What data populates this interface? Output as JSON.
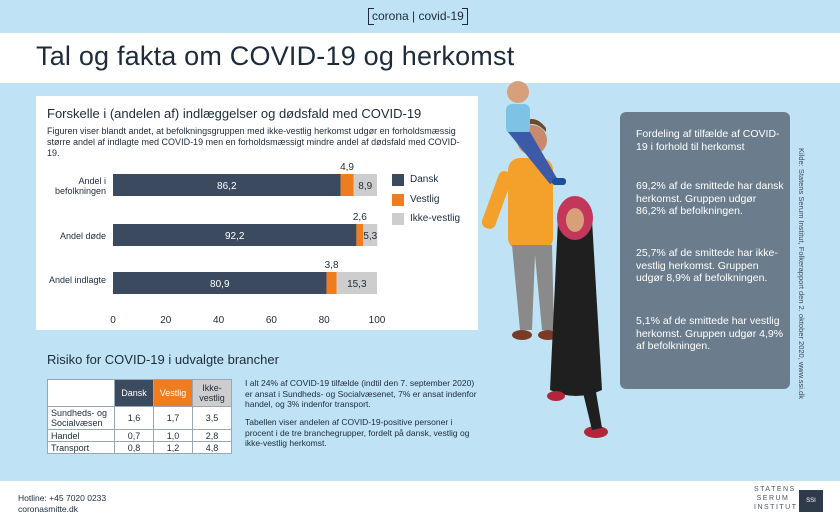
{
  "header": {
    "tag": "corona | covid-19",
    "title": "Tal og fakta om COVID-19 og herkomst"
  },
  "card1": {
    "heading": "Forskelle i (andelen af) indlæggelser og dødsfald med COVID-19",
    "description": "Figuren viser blandt andet, at befolkningsgruppen med ikke-vestlig herkomst udgør en forholds­mæssig større andel af indlagte med COVID-19 men en forholdsmæssigt mindre andel af døds­fald med COVID-19."
  },
  "chart_data": {
    "type": "bar",
    "orientation": "horizontal",
    "stacked": true,
    "categories": [
      "Andel i befolkningen",
      "Andel døde",
      "Andel indlagte"
    ],
    "series": [
      {
        "name": "Dansk",
        "color": "#3c4a5f",
        "values": [
          86.2,
          92.2,
          80.9
        ]
      },
      {
        "name": "Vestlig",
        "color": "#ef7d1f",
        "values": [
          4.9,
          2.6,
          3.8
        ]
      },
      {
        "name": "Ikke-vestlig",
        "color": "#cdcdcd",
        "values": [
          8.9,
          5.3,
          15.3
        ]
      }
    ],
    "data_labels": [
      {
        "dansk": "86,2",
        "vestlig": "4,9",
        "ikke": "8,9"
      },
      {
        "dansk": "92,2",
        "vestlig": "2,6",
        "ikke": "5,3"
      },
      {
        "dansk": "80,9",
        "vestlig": "3,8",
        "ikke": "15,3"
      }
    ],
    "xlim": [
      0,
      100
    ],
    "xticks": [
      "0",
      "20",
      "40",
      "60",
      "80",
      "100"
    ],
    "legend": "right",
    "grid": false
  },
  "risk": {
    "title": "Risiko for COVID-19 i udvalgte brancher",
    "columns": [
      "Dansk",
      "Vestlig",
      "Ikke-vestlig"
    ],
    "rows": [
      {
        "label": "Sundheds- og Socialvæsen",
        "values": [
          "1,6",
          "1,7",
          "3,5"
        ]
      },
      {
        "label": "Handel",
        "values": [
          "0,7",
          "1,0",
          "2,8"
        ]
      },
      {
        "label": "Transport",
        "values": [
          "0,8",
          "1,2",
          "4,8"
        ]
      }
    ],
    "note1": "I alt 24% af COVID-19 tilfælde (indtil den 7. september 2020) er ansat i Sundheds- og Socialvæsenet, 7% er ansat indenfor handel, og 3% indenfor transport.",
    "note2": "Tabellen viser andelen af COVID-19-positive personer i procent i de tre branchegrupper, fordelt på dansk, vestlig og ikke-vestlig herkomst."
  },
  "sidecard": {
    "title": "Fordeling af tilfælde af COVID-19 i forhold til herkomst",
    "p1": "69,2% af de smittede har dansk herkomst. Gruppen udgør 86,2% af befolkningen.",
    "p2": "25,7% af de smittede har ikke-vestlig herkomst. Gruppen udgør 8,9% af befolkningen.",
    "p3": "5,1% af de smittede har vestlig herkomst. Gruppen udgør 4,9% af befolkningen."
  },
  "source": "Kilde: Statens Serum Institut, Folkerapport den 2. oktober 2020, www.ssi.dk",
  "footer": {
    "hotline": "Hotline: +45 7020 0233",
    "site": "coronasmitte.dk",
    "org_lines": [
      "STATENS",
      "SERUM",
      "INSTITUT"
    ],
    "logo_text": "SSI"
  }
}
